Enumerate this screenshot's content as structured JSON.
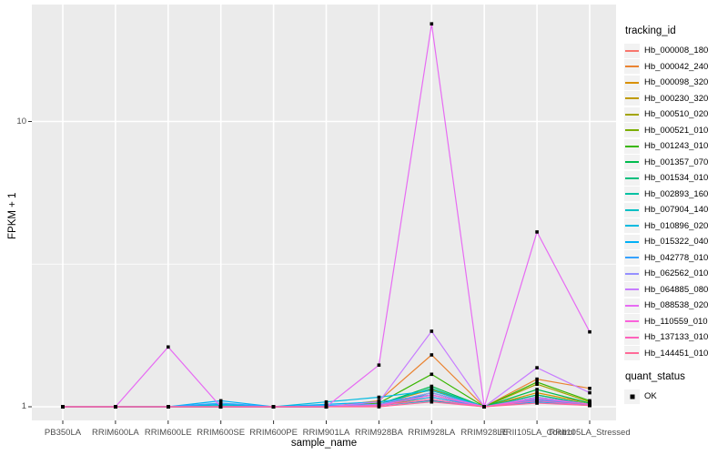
{
  "figure": {
    "background": "#FFFFFF",
    "panel_background": "#EBEBEB",
    "gridline_color": "#FFFFFF",
    "tick_color": "#333333",
    "tick_label_color": "#4D4D4D",
    "legend_key_background": "#F2F2F2"
  },
  "axes": {
    "x_title": "sample_name",
    "y_title": "FPKM + 1",
    "y_tick_labels": [
      "1",
      "10"
    ]
  },
  "legend": {
    "tracking_title": "tracking_id",
    "quant_title": "quant_status",
    "quant_ok_label": "OK"
  },
  "chart_data": {
    "type": "line",
    "title": "",
    "xlabel": "sample_name",
    "ylabel": "FPKM + 1",
    "y_scale": "log10",
    "y_tick_values": [
      1,
      10
    ],
    "y_minor_gridline_values": [
      3.162
    ],
    "ylim": [
      0.97,
      25
    ],
    "grid": "on",
    "legend_position": "right",
    "point_shape": "filled-square",
    "point_color": "#000000",
    "point_status_label": "OK",
    "categories": [
      "PB350LA",
      "RRIM600LA",
      "RRIM600LE",
      "RRIM600SE",
      "RRIM600PE",
      "RRIM901LA",
      "RRIM928BA",
      "RRIM928LA",
      "RRIM928LE",
      "RRII105LA_Control",
      "RRII105LA_Stressed"
    ],
    "series": [
      {
        "name": "Hb_000008_180",
        "color": "#F8766D",
        "values": [
          1,
          1,
          1,
          1,
          1,
          1,
          1.01,
          1.1,
          1,
          1.08,
          1.02
        ]
      },
      {
        "name": "Hb_000042_240",
        "color": "#EA8331",
        "values": [
          1,
          1,
          1,
          1,
          1,
          1,
          1.05,
          1.52,
          1,
          1.25,
          1.16
        ]
      },
      {
        "name": "Hb_000098_320",
        "color": "#D89000",
        "values": [
          1,
          1,
          1,
          1,
          1,
          1,
          1.02,
          1.15,
          1,
          1.12,
          1.03
        ]
      },
      {
        "name": "Hb_000230_320",
        "color": "#C09B00",
        "values": [
          1,
          1,
          1,
          1,
          1,
          1,
          1.01,
          1.08,
          1,
          1.1,
          1.02
        ]
      },
      {
        "name": "Hb_000510_020",
        "color": "#A3A500",
        "values": [
          1,
          1,
          1,
          1,
          1,
          1,
          1.02,
          1.12,
          1,
          1.2,
          1.04
        ]
      },
      {
        "name": "Hb_000521_010",
        "color": "#7CAE00",
        "values": [
          1,
          1,
          1,
          1,
          1,
          1,
          1.01,
          1.06,
          1,
          1.05,
          1.01
        ]
      },
      {
        "name": "Hb_001243_010",
        "color": "#39B600",
        "values": [
          1,
          1,
          1,
          1,
          1,
          1,
          1.03,
          1.3,
          1,
          1.22,
          1.05
        ]
      },
      {
        "name": "Hb_001357_070",
        "color": "#00BB4E",
        "values": [
          1,
          1,
          1,
          1,
          1,
          1,
          1.02,
          1.18,
          1,
          1.15,
          1.03
        ]
      },
      {
        "name": "Hb_001534_010",
        "color": "#00BF7D",
        "values": [
          1,
          1,
          1,
          1,
          1,
          1,
          1.01,
          1.12,
          1,
          1.1,
          1.02
        ]
      },
      {
        "name": "Hb_002893_160",
        "color": "#00C1A3",
        "values": [
          1,
          1,
          1,
          1,
          1,
          1,
          1.02,
          1.16,
          1,
          1.08,
          1.02
        ]
      },
      {
        "name": "Hb_007904_140",
        "color": "#00BFC4",
        "values": [
          1,
          1,
          1,
          1.01,
          1,
          1.01,
          1.01,
          1.05,
          1,
          1.06,
          1.01
        ]
      },
      {
        "name": "Hb_010896_020",
        "color": "#00BAE0",
        "values": [
          1,
          1,
          1,
          1.02,
          1,
          1.04,
          1.08,
          1.14,
          1,
          1.05,
          1.02
        ]
      },
      {
        "name": "Hb_015322_040",
        "color": "#00B0F6",
        "values": [
          1,
          1,
          1,
          1.05,
          1,
          1.02,
          1.04,
          1.1,
          1,
          1.04,
          1.01
        ]
      },
      {
        "name": "Hb_042778_010",
        "color": "#35A2FF",
        "values": [
          1,
          1,
          1,
          1.03,
          1,
          1.01,
          1.02,
          1.08,
          1,
          1.06,
          1.02
        ]
      },
      {
        "name": "Hb_062562_010",
        "color": "#9590FF",
        "values": [
          1,
          1,
          1,
          1,
          1,
          1,
          1.02,
          1.12,
          1,
          1.08,
          1.02
        ]
      },
      {
        "name": "Hb_064885_080",
        "color": "#C77CFF",
        "values": [
          1,
          1,
          1,
          1,
          1,
          1,
          1.04,
          1.84,
          1,
          1.37,
          1.12
        ]
      },
      {
        "name": "Hb_088538_020",
        "color": "#E76BF3",
        "values": [
          1,
          1,
          1.62,
          1,
          1,
          1,
          1.4,
          22,
          1,
          4.1,
          1.83
        ]
      },
      {
        "name": "Hb_110559_010",
        "color": "#FA62DB",
        "values": [
          1,
          1,
          1,
          1,
          1,
          1,
          1.01,
          1.1,
          1,
          1.07,
          1.02
        ]
      },
      {
        "name": "Hb_137133_010",
        "color": "#FF62BC",
        "values": [
          1,
          1,
          1,
          1,
          1,
          1,
          1.01,
          1.06,
          1,
          1.05,
          1.01
        ]
      },
      {
        "name": "Hb_144451_010",
        "color": "#FF6A98",
        "values": [
          1,
          1,
          1,
          1,
          1,
          1,
          1,
          1.04,
          1,
          1.03,
          1.01
        ]
      }
    ]
  }
}
